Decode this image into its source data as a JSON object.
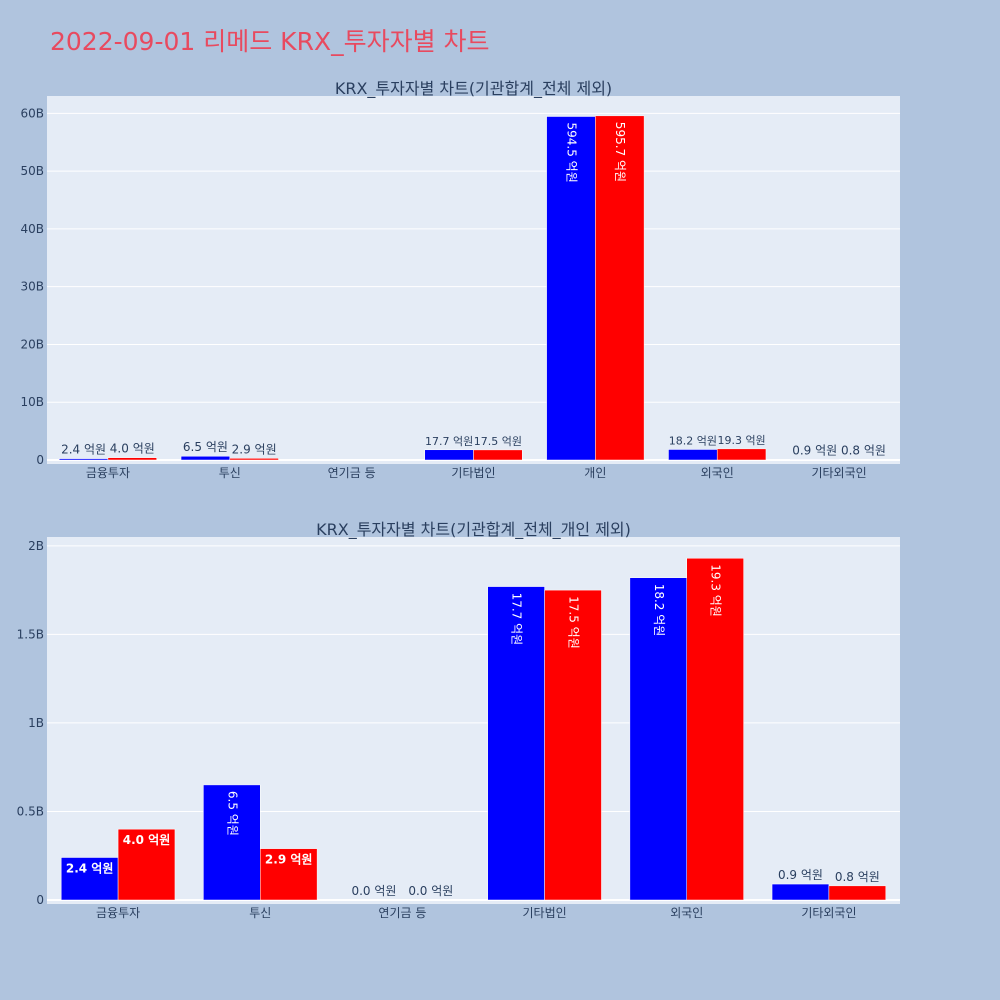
{
  "page_title": "2022-09-01 리메드 KRX_투자자별 차트",
  "colors": {
    "background": "#b0c4de",
    "plot_bg": "#e5ecf6",
    "title": "#e84a5f",
    "series_a": "#0000ff",
    "series_b": "#ff0000"
  },
  "chart_data": [
    {
      "type": "bar",
      "title": "KRX_투자자별 차트(기관합계_전체 제외)",
      "categories": [
        "금융투자",
        "투신",
        "연기금 등",
        "기타법인",
        "개인",
        "외국인",
        "기타외국인"
      ],
      "ylim": [
        0,
        63000000000
      ],
      "yticks": [
        0,
        10000000000,
        20000000000,
        30000000000,
        40000000000,
        50000000000,
        60000000000
      ],
      "ytick_labels": [
        "0",
        "10B",
        "20B",
        "30B",
        "40B",
        "50B",
        "60B"
      ],
      "grid": true,
      "series": [
        {
          "color": "#0000ff",
          "values": [
            240000000,
            650000000,
            0,
            1770000000,
            59450000000,
            1820000000,
            90000000
          ],
          "labels": [
            "2.4 억원",
            "6.5 억원",
            "",
            "17.7 억원",
            "594.5 억원",
            "18.2 억원",
            "0.9 억원"
          ]
        },
        {
          "color": "#ff0000",
          "values": [
            400000000,
            290000000,
            0,
            1750000000,
            59570000000,
            1930000000,
            80000000
          ],
          "labels": [
            "4.0 억원",
            "2.9 억원",
            "",
            "17.5 억원",
            "595.7 억원",
            "19.3 억원",
            "0.8 억원"
          ]
        }
      ]
    },
    {
      "type": "bar",
      "title": "KRX_투자자별 차트(기관합계_전체_개인 제외)",
      "categories": [
        "금융투자",
        "투신",
        "연기금 등",
        "기타법인",
        "외국인",
        "기타외국인"
      ],
      "ylim": [
        0,
        2050000000
      ],
      "yticks": [
        0,
        500000000,
        1000000000,
        1500000000,
        2000000000
      ],
      "ytick_labels": [
        "0",
        "0.5B",
        "1B",
        "1.5B",
        "2B"
      ],
      "grid": true,
      "series": [
        {
          "color": "#0000ff",
          "values": [
            240000000,
            650000000,
            0,
            1770000000,
            1820000000,
            90000000
          ],
          "labels": [
            "2.4 억원",
            "6.5 억원",
            "0.0 억원",
            "17.7 억원",
            "18.2 억원",
            "0.9 억원"
          ]
        },
        {
          "color": "#ff0000",
          "values": [
            400000000,
            290000000,
            0,
            1750000000,
            1930000000,
            80000000
          ],
          "labels": [
            "4.0 억원",
            "2.9 억원",
            "0.0 억원",
            "17.5 억원",
            "19.3 억원",
            "0.8 억원"
          ]
        }
      ]
    }
  ]
}
